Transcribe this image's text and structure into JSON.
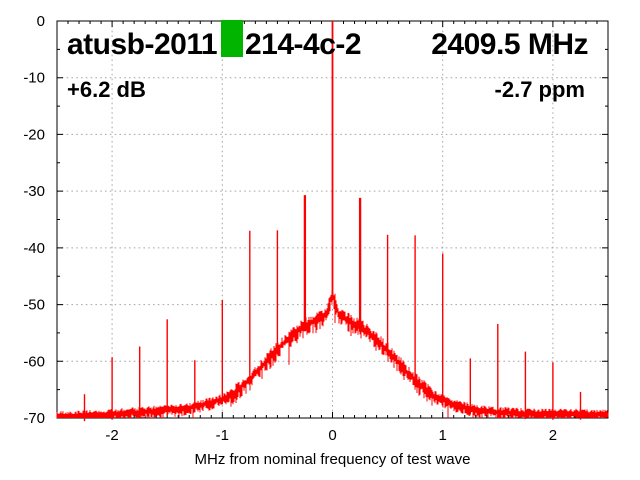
{
  "chart_data": {
    "type": "line",
    "labels": {
      "device_id": "atusb-2011",
      "device_serial": "214-4c-2",
      "center_frequency": "2409.5 MHz",
      "gain": "+6.2 dB",
      "frequency_offset": "-2.7 ppm",
      "xlabel": "MHz from nominal frequency of test wave"
    },
    "colors": {
      "trace": "#ff0000",
      "grid": "#a6a6a6",
      "axis": "#000000",
      "pass_marker": "#00b400",
      "background": "#ffffff"
    },
    "xlim": [
      -2.5,
      2.5
    ],
    "ylim": [
      -70,
      0
    ],
    "x_ticks": [
      -2,
      -1,
      0,
      1,
      2
    ],
    "y_ticks": [
      0,
      -10,
      -20,
      -30,
      -40,
      -50,
      -60,
      -70
    ],
    "x_minor_step": 0.1,
    "y_minor_step": 5,
    "grid": true,
    "noise_jitter_db": 1.2,
    "noise_floor_db": -69.5,
    "spur_spacing_mhz": 0.25,
    "noise_envelope": [
      [
        -2.5,
        -69.7
      ],
      [
        -2.35,
        -69.7
      ],
      [
        -2.2,
        -69.5
      ],
      [
        -2.0,
        -69.3
      ],
      [
        -1.75,
        -69.0
      ],
      [
        -1.5,
        -68.6
      ],
      [
        -1.3,
        -68.2
      ],
      [
        -1.1,
        -67.3
      ],
      [
        -1.0,
        -66.6
      ],
      [
        -0.9,
        -65.7
      ],
      [
        -0.8,
        -64.0
      ],
      [
        -0.7,
        -62.2
      ],
      [
        -0.6,
        -60.0
      ],
      [
        -0.5,
        -57.8
      ],
      [
        -0.4,
        -56.0
      ],
      [
        -0.3,
        -54.4
      ],
      [
        -0.25,
        -53.7
      ],
      [
        -0.2,
        -53.2
      ],
      [
        -0.15,
        -52.8
      ],
      [
        -0.1,
        -52.4
      ],
      [
        -0.05,
        -51.6
      ],
      [
        -0.02,
        -49.2
      ],
      [
        0,
        -48.2
      ],
      [
        0.02,
        -49.2
      ],
      [
        0.05,
        -51.4
      ],
      [
        0.1,
        -52.3
      ],
      [
        0.15,
        -52.8
      ],
      [
        0.2,
        -53.3
      ],
      [
        0.25,
        -53.8
      ],
      [
        0.3,
        -54.5
      ],
      [
        0.4,
        -56.2
      ],
      [
        0.5,
        -58.0
      ],
      [
        0.6,
        -60.2
      ],
      [
        0.7,
        -62.4
      ],
      [
        0.8,
        -64.2
      ],
      [
        0.9,
        -65.9
      ],
      [
        1.0,
        -66.8
      ],
      [
        1.1,
        -67.6
      ],
      [
        1.3,
        -68.6
      ],
      [
        1.5,
        -69.0
      ],
      [
        1.75,
        -69.2
      ],
      [
        2.0,
        -69.3
      ],
      [
        2.25,
        -69.3
      ],
      [
        2.5,
        -69.4
      ]
    ],
    "spurs": [
      [
        -2.25,
        -65.8
      ],
      [
        -2.0,
        -59.3
      ],
      [
        -1.75,
        -57.4
      ],
      [
        -1.5,
        -52.6
      ],
      [
        -1.25,
        -59.8
      ],
      [
        -1.0,
        -49.2
      ],
      [
        -0.75,
        -37.0
      ],
      [
        -0.5,
        -36.9
      ],
      [
        -0.25,
        -30.7
      ],
      [
        0,
        0
      ],
      [
        0.25,
        -31.2
      ],
      [
        0.5,
        -37.7
      ],
      [
        0.75,
        -37.8
      ],
      [
        1.0,
        -41.0
      ],
      [
        1.25,
        -59.5
      ],
      [
        1.5,
        -53.4
      ],
      [
        1.75,
        -58.3
      ],
      [
        2.0,
        -60.2
      ],
      [
        2.25,
        -65.4
      ]
    ]
  }
}
